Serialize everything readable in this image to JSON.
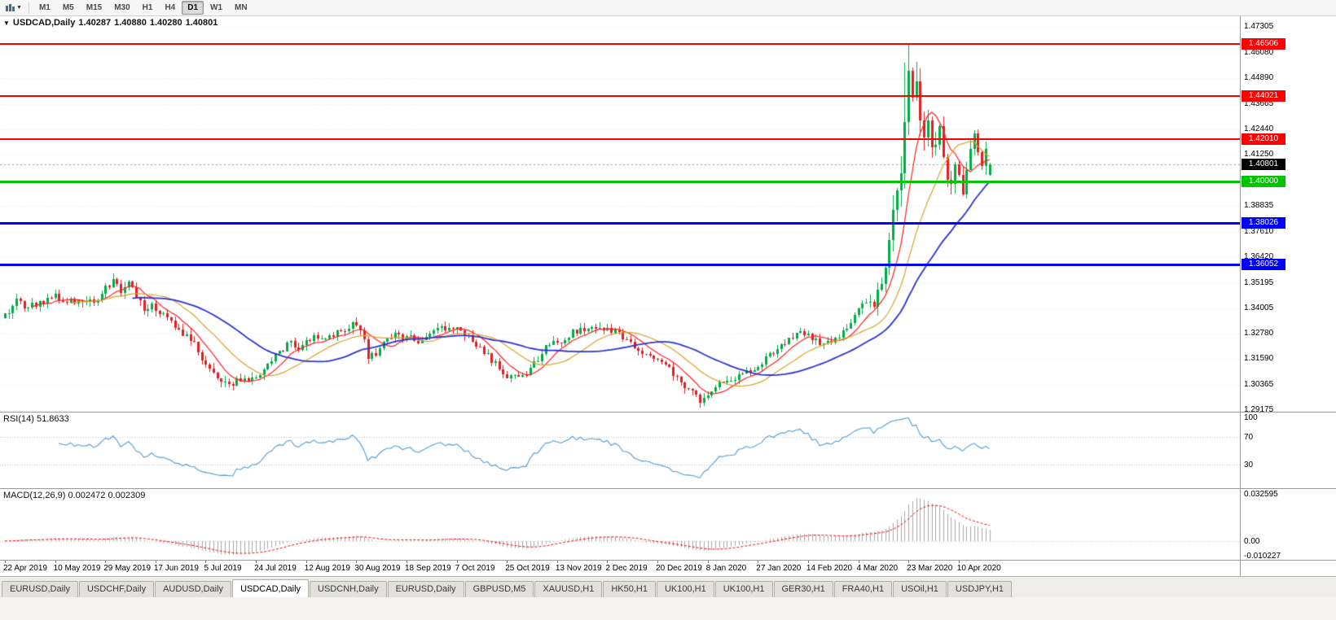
{
  "toolbar": {
    "timeframes": [
      {
        "label": "M1",
        "active": false
      },
      {
        "label": "M5",
        "active": false
      },
      {
        "label": "M15",
        "active": false
      },
      {
        "label": "M30",
        "active": false
      },
      {
        "label": "H1",
        "active": false
      },
      {
        "label": "H4",
        "active": false
      },
      {
        "label": "D1",
        "active": true
      },
      {
        "label": "W1",
        "active": false
      },
      {
        "label": "MN",
        "active": false
      }
    ]
  },
  "chart": {
    "title": "USDCAD,Daily",
    "ohlc": {
      "open": "1.40287",
      "high": "1.40880",
      "low": "1.40280",
      "close": "1.40801"
    }
  },
  "chart_data": {
    "type": "candlestick",
    "symbol": "USDCAD",
    "timeframe": "Daily",
    "num_days": 256,
    "candle_up_color": "#00ad45",
    "candle_down_color": "#e51c23",
    "grid_color": "#e6e6e6",
    "price_path": [
      [
        0,
        1.3365
      ],
      [
        3,
        1.3432
      ],
      [
        6,
        1.34
      ],
      [
        9,
        1.3428
      ],
      [
        13,
        1.3462
      ],
      [
        16,
        1.342
      ],
      [
        19,
        1.3448
      ],
      [
        23,
        1.343
      ],
      [
        26,
        1.3492
      ],
      [
        28,
        1.3525
      ],
      [
        30,
        1.3478
      ],
      [
        32,
        1.3512
      ],
      [
        34,
        1.3452
      ],
      [
        36,
        1.3395
      ],
      [
        38,
        1.3428
      ],
      [
        40,
        1.3375
      ],
      [
        43,
        1.3332
      ],
      [
        46,
        1.3282
      ],
      [
        49,
        1.3242
      ],
      [
        52,
        1.3128
      ],
      [
        55,
        1.3068
      ],
      [
        58,
        1.3042
      ],
      [
        61,
        1.3062
      ],
      [
        63,
        1.3048
      ],
      [
        65,
        1.3088
      ],
      [
        68,
        1.3122
      ],
      [
        71,
        1.3188
      ],
      [
        74,
        1.3242
      ],
      [
        76,
        1.3212
      ],
      [
        78,
        1.3232
      ],
      [
        80,
        1.3272
      ],
      [
        83,
        1.3248
      ],
      [
        86,
        1.3282
      ],
      [
        88,
        1.3302
      ],
      [
        90,
        1.3332
      ],
      [
        92,
        1.3308
      ],
      [
        94,
        1.3172
      ],
      [
        96,
        1.3192
      ],
      [
        98,
        1.3232
      ],
      [
        101,
        1.3272
      ],
      [
        104,
        1.3266
      ],
      [
        107,
        1.3242
      ],
      [
        110,
        1.3272
      ],
      [
        113,
        1.3322
      ],
      [
        115,
        1.3292
      ],
      [
        117,
        1.3312
      ],
      [
        120,
        1.3262
      ],
      [
        123,
        1.3212
      ],
      [
        126,
        1.3152
      ],
      [
        129,
        1.3092
      ],
      [
        132,
        1.3068
      ],
      [
        135,
        1.3092
      ],
      [
        138,
        1.3162
      ],
      [
        141,
        1.3232
      ],
      [
        144,
        1.3246
      ],
      [
        147,
        1.3282
      ],
      [
        150,
        1.3302
      ],
      [
        153,
        1.3312
      ],
      [
        156,
        1.3296
      ],
      [
        159,
        1.3282
      ],
      [
        162,
        1.3232
      ],
      [
        165,
        1.3182
      ],
      [
        168,
        1.3166
      ],
      [
        171,
        1.3122
      ],
      [
        174,
        1.3082
      ],
      [
        177,
        1.3012
      ],
      [
        180,
        1.2962
      ],
      [
        182,
        1.2986
      ],
      [
        185,
        1.3052
      ],
      [
        188,
        1.3062
      ],
      [
        191,
        1.3092
      ],
      [
        194,
        1.3112
      ],
      [
        197,
        1.3162
      ],
      [
        200,
        1.3212
      ],
      [
        203,
        1.3252
      ],
      [
        206,
        1.3292
      ],
      [
        208,
        1.3272
      ],
      [
        211,
        1.3236
      ],
      [
        214,
        1.3232
      ],
      [
        217,
        1.3292
      ],
      [
        219,
        1.3332
      ],
      [
        221,
        1.3386
      ],
      [
        223,
        1.3432
      ],
      [
        225,
        1.3416
      ],
      [
        227,
        1.3512
      ],
      [
        229,
        1.3722
      ],
      [
        231,
        1.3922
      ],
      [
        233,
        1.4222
      ],
      [
        234,
        1.4502
      ],
      [
        235,
        1.4412
      ],
      [
        236,
        1.4482
      ],
      [
        237,
        1.4302
      ],
      [
        238,
        1.4182
      ],
      [
        239,
        1.4252
      ],
      [
        240,
        1.4122
      ],
      [
        241,
        1.4162
      ],
      [
        242,
        1.4222
      ],
      [
        243,
        1.4082
      ],
      [
        244,
        1.4022
      ],
      [
        245,
        1.3982
      ],
      [
        246,
        1.4052
      ],
      [
        247,
        1.4002
      ],
      [
        248,
        1.3962
      ],
      [
        249,
        1.4082
      ],
      [
        250,
        1.4172
      ],
      [
        251,
        1.4232
      ],
      [
        252,
        1.4152
      ],
      [
        253,
        1.4102
      ],
      [
        254,
        1.4132
      ],
      [
        255,
        1.40801
      ]
    ],
    "volatility_path": [
      [
        0,
        0.005
      ],
      [
        90,
        0.0048
      ],
      [
        140,
        0.0044
      ],
      [
        180,
        0.0046
      ],
      [
        200,
        0.0042
      ],
      [
        218,
        0.005
      ],
      [
        224,
        0.0065
      ],
      [
        228,
        0.011
      ],
      [
        232,
        0.016
      ],
      [
        234,
        0.02
      ],
      [
        237,
        0.017
      ],
      [
        240,
        0.014
      ],
      [
        243,
        0.012
      ],
      [
        246,
        0.01
      ],
      [
        250,
        0.009
      ],
      [
        255,
        0.0085
      ]
    ],
    "extremes": [
      {
        "day": 234,
        "high": 1.46506
      },
      {
        "day": 233,
        "high": 1.456
      },
      {
        "day": 180,
        "low": 1.294
      }
    ],
    "last_candle": {
      "open": 1.40287,
      "high": 1.4088,
      "low": 1.4028,
      "close": 1.40801
    },
    "levels": [
      {
        "price": 1.46506,
        "label": "1.46506",
        "color": "#ff0000",
        "width": 2,
        "type": "resistance"
      },
      {
        "price": 1.44021,
        "label": "1.44021",
        "color": "#ff0000",
        "width": 2,
        "type": "resistance"
      },
      {
        "price": 1.4201,
        "label": "1.42010",
        "color": "#ff0000",
        "width": 2,
        "type": "resistance"
      },
      {
        "price": 1.4,
        "label": "1.40000",
        "color": "#00c400",
        "width": 3,
        "type": "support"
      },
      {
        "price": 1.38026,
        "label": "1.38026",
        "color": "#0000ff",
        "width": 3,
        "type": "support"
      },
      {
        "price": 1.36052,
        "label": "1.36052",
        "color": "#0000ff",
        "width": 3,
        "type": "support"
      }
    ],
    "current_price": {
      "value": 1.40801,
      "label": "1.40801",
      "color": "#000000"
    },
    "y_axis": {
      "top_price": 1.47305,
      "bottom_price": 1.29175,
      "ticks": [
        "1.47305",
        "1.46080",
        "1.44890",
        "1.43665",
        "1.42440",
        "1.41250",
        "1.40025",
        "1.38835",
        "1.37610",
        "1.36420",
        "1.35195",
        "1.34005",
        "1.32780",
        "1.31590",
        "1.30365",
        "1.29175"
      ]
    },
    "x_axis": {
      "step_days": 13,
      "dates": [
        "22 Apr 2019",
        "10 May 2019",
        "29 May 2019",
        "17 Jun 2019",
        "5 Jul 2019",
        "24 Jul 2019",
        "12 Aug 2019",
        "30 Aug 2019",
        "18 Sep 2019",
        "7 Oct 2019",
        "25 Oct 2019",
        "13 Nov 2019",
        "2 Dec 2019",
        "20 Dec 2019",
        "8 Jan 2020",
        "27 Jan 2020",
        "14 Feb 2020",
        "4 Mar 2020",
        "23 Mar 2020",
        "10 Apr 2020"
      ]
    },
    "moving_averages": [
      {
        "period": 8,
        "color": "#ff2020",
        "width": 1.2
      },
      {
        "period": 18,
        "color": "#d9a22b",
        "width": 1.2
      },
      {
        "period": 34,
        "color": "#2d35d0",
        "width": 1.8
      }
    ],
    "rsi": {
      "label": "RSI(14)",
      "value": "51.8633",
      "period": 14,
      "color": "#4f9bd5",
      "level_lines": [
        70,
        30
      ],
      "axis_labels": [
        "100",
        "70",
        "30"
      ],
      "axis_values": [
        100,
        70,
        30
      ]
    },
    "macd": {
      "label": "MACD(12,26,9)",
      "value_main": "0.002472",
      "value_signal": "0.002309",
      "fast": 12,
      "slow": 26,
      "signal_period": 9,
      "histogram_color": "#a8a8a8",
      "signal_color": "#ff0000",
      "axis_max": 0.032595,
      "axis_min": -0.010227,
      "axis_labels": [
        "0.032595",
        "0.00",
        "-0.010227"
      ],
      "axis_values": [
        0.032595,
        0,
        -0.010227
      ]
    }
  },
  "tabs": [
    {
      "label": "EURUSD,Daily",
      "active": false
    },
    {
      "label": "USDCHF,Daily",
      "active": false
    },
    {
      "label": "AUDUSD,Daily",
      "active": false
    },
    {
      "label": "USDCAD,Daily",
      "active": true
    },
    {
      "label": "USDCNH,Daily",
      "active": false
    },
    {
      "label": "EURUSD,Daily",
      "active": false
    },
    {
      "label": "GBPUSD,M5",
      "active": false
    },
    {
      "label": "XAUUSD,H1",
      "active": false
    },
    {
      "label": "HK50,H1",
      "active": false
    },
    {
      "label": "UK100,H1",
      "active": false
    },
    {
      "label": "UK100,H1",
      "active": false
    },
    {
      "label": "GER30,H1",
      "active": false
    },
    {
      "label": "FRA40,H1",
      "active": false
    },
    {
      "label": "USOil,H1",
      "active": false
    },
    {
      "label": "USDJPY,H1",
      "active": false
    }
  ]
}
